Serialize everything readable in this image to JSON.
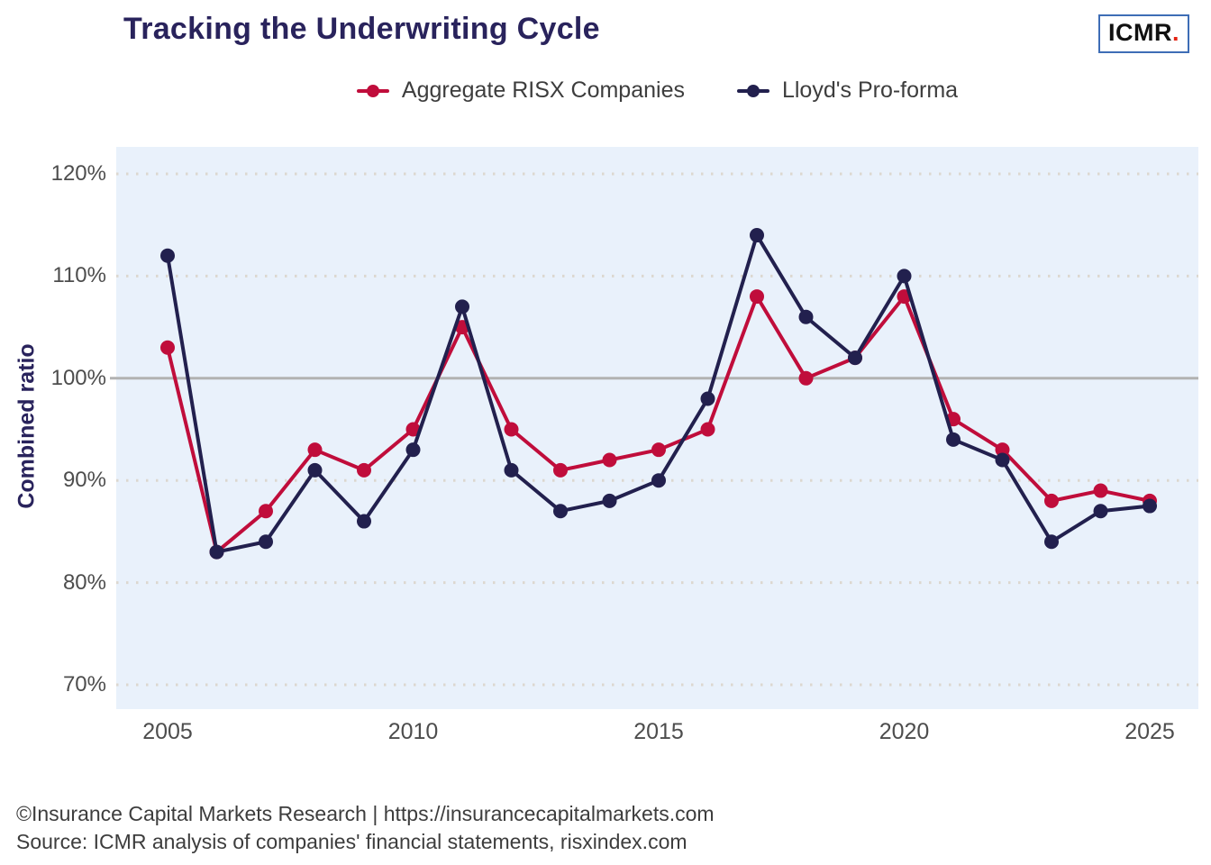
{
  "header": {
    "title": "Tracking the Underwriting Cycle",
    "logo_text": "ICMR",
    "logo_dot": "."
  },
  "legend": [
    {
      "label": "Aggregate RISX Companies",
      "color": "#c00d3b"
    },
    {
      "label": "Lloyd's Pro-forma",
      "color": "#22204e"
    }
  ],
  "chart_data": {
    "type": "line",
    "title": "Tracking the Underwriting Cycle",
    "ylabel": "Combined ratio",
    "xlabel": "",
    "x": [
      2005,
      2006,
      2007,
      2008,
      2009,
      2010,
      2011,
      2012,
      2013,
      2014,
      2015,
      2016,
      2017,
      2018,
      2019,
      2020,
      2021,
      2022,
      2023,
      2024,
      2025
    ],
    "series": [
      {
        "name": "Aggregate RISX Companies",
        "color": "#c00d3b",
        "values": [
          103,
          83,
          87,
          93,
          91,
          95,
          105,
          95,
          91,
          92,
          93,
          95,
          108,
          100,
          102,
          108,
          96,
          93,
          88,
          89,
          88
        ]
      },
      {
        "name": "Lloyd's Pro-forma",
        "color": "#22204e",
        "values": [
          112,
          83,
          84,
          91,
          86,
          93,
          107,
          91,
          87,
          88,
          90,
          98,
          114,
          106,
          102,
          110,
          94,
          92,
          84,
          87,
          87.5
        ]
      }
    ],
    "y_ticks": [
      "120%",
      "110%",
      "100%",
      "90%",
      "80%",
      "70%"
    ],
    "y_tick_values": [
      120,
      110,
      100,
      90,
      80,
      70
    ],
    "x_ticks": [
      "2005",
      "2010",
      "2015",
      "2020",
      "2025"
    ],
    "x_tick_values": [
      2005,
      2010,
      2015,
      2020,
      2025
    ],
    "ylim": [
      67.5,
      122.5
    ],
    "xlim": [
      2004,
      2026
    ],
    "reference_line": 100,
    "grid": "horizontal-dotted",
    "legend_position": "top-center",
    "plot_background": "#e9f1fb",
    "grid_color": "#dcd7cf",
    "reference_line_color": "#b2b2b2"
  },
  "footer": {
    "line1": "©Insurance Capital Markets Research | https://insurancecapitalmarkets.com",
    "line2": "Source: ICMR analysis of companies' financial statements, risxindex.com"
  }
}
